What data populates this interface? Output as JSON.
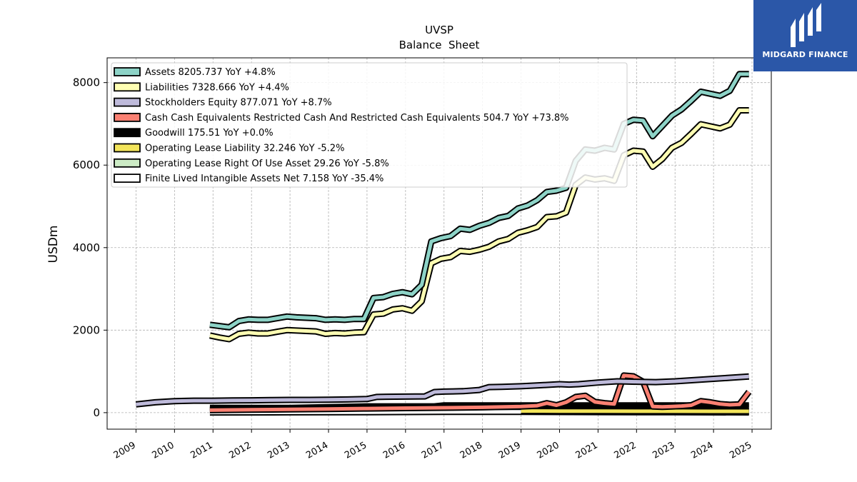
{
  "brand": {
    "name": "MIDGARD FINANCE",
    "bg": "#2b57a8"
  },
  "chart_data": {
    "type": "line",
    "title": "UVSP",
    "subtitle": "Balance  Sheet",
    "ylabel": "USDm",
    "xlabel": "",
    "xlim": [
      2008.25,
      2025.5
    ],
    "ylim": [
      -400,
      8600
    ],
    "yticks": [
      0,
      2000,
      4000,
      6000,
      8000
    ],
    "xticks": [
      "2009",
      "2010",
      "2011",
      "2012",
      "2013",
      "2014",
      "2015",
      "2016",
      "2017",
      "2018",
      "2019",
      "2020",
      "2021",
      "2022",
      "2023",
      "2024",
      "2025"
    ],
    "grid": true,
    "legend_position": "top-left",
    "series": [
      {
        "name": "Assets",
        "legend": "Assets  8205.737 YoY +4.8%",
        "color": "#8dd3c7",
        "x": [
          2010.92,
          2011.17,
          2011.42,
          2011.67,
          2011.92,
          2012.17,
          2012.42,
          2012.67,
          2012.92,
          2013.17,
          2013.42,
          2013.67,
          2013.92,
          2014.17,
          2014.42,
          2014.67,
          2014.92,
          2015.17,
          2015.42,
          2015.67,
          2015.92,
          2016.17,
          2016.42,
          2016.67,
          2016.92,
          2017.17,
          2017.42,
          2017.67,
          2017.92,
          2018.17,
          2018.42,
          2018.67,
          2018.92,
          2019.17,
          2019.42,
          2019.67,
          2019.92,
          2020.17,
          2020.42,
          2020.67,
          2020.92,
          2021.17,
          2021.42,
          2021.67,
          2021.92,
          2022.17,
          2022.42,
          2022.67,
          2022.92,
          2023.17,
          2023.42,
          2023.67,
          2023.92,
          2024.17,
          2024.42,
          2024.67,
          2024.92
        ],
        "y": [
          2130,
          2100,
          2070,
          2220,
          2260,
          2250,
          2250,
          2290,
          2330,
          2310,
          2300,
          2290,
          2250,
          2260,
          2250,
          2270,
          2270,
          2780,
          2800,
          2880,
          2920,
          2870,
          3100,
          4150,
          4230,
          4280,
          4460,
          4430,
          4530,
          4600,
          4720,
          4770,
          4950,
          5020,
          5150,
          5350,
          5380,
          5450,
          6100,
          6380,
          6350,
          6420,
          6380,
          7000,
          7100,
          7080,
          6700,
          6950,
          7200,
          7350,
          7560,
          7780,
          7730,
          7680,
          7800,
          8205.737,
          8205.737
        ]
      },
      {
        "name": "Liabilities",
        "legend": "Liabilities  7328.666 YoY +4.4%",
        "color": "#ffffb3",
        "x": [
          2010.92,
          2011.17,
          2011.42,
          2011.67,
          2011.92,
          2012.17,
          2012.42,
          2012.67,
          2012.92,
          2013.17,
          2013.42,
          2013.67,
          2013.92,
          2014.17,
          2014.42,
          2014.67,
          2014.92,
          2015.17,
          2015.42,
          2015.67,
          2015.92,
          2016.17,
          2016.42,
          2016.67,
          2016.92,
          2017.17,
          2017.42,
          2017.67,
          2017.92,
          2018.17,
          2018.42,
          2018.67,
          2018.92,
          2019.17,
          2019.42,
          2019.67,
          2019.92,
          2020.17,
          2020.42,
          2020.67,
          2020.92,
          2021.17,
          2021.42,
          2021.67,
          2021.92,
          2022.17,
          2022.42,
          2022.67,
          2022.92,
          2023.17,
          2023.42,
          2023.67,
          2023.92,
          2024.17,
          2024.42,
          2024.67,
          2024.92
        ],
        "y": [
          1870,
          1820,
          1780,
          1910,
          1940,
          1920,
          1920,
          1960,
          2000,
          1990,
          1980,
          1970,
          1910,
          1930,
          1920,
          1940,
          1950,
          2380,
          2400,
          2500,
          2530,
          2470,
          2700,
          3620,
          3730,
          3770,
          3920,
          3900,
          3950,
          4020,
          4150,
          4210,
          4360,
          4420,
          4500,
          4740,
          4760,
          4850,
          5520,
          5700,
          5650,
          5680,
          5620,
          6240,
          6350,
          6330,
          5960,
          6150,
          6420,
          6540,
          6760,
          6990,
          6940,
          6890,
          6980,
          7328.666,
          7328.666
        ]
      },
      {
        "name": "Stockholders Equity",
        "legend": "Stockholders Equity  877.071 YoY +8.7%",
        "color": "#bebada",
        "x": [
          2009.0,
          2009.5,
          2010.0,
          2010.5,
          2011.0,
          2011.5,
          2012.0,
          2012.5,
          2013.0,
          2013.5,
          2014.0,
          2014.5,
          2015.0,
          2015.25,
          2015.5,
          2016.0,
          2016.5,
          2016.75,
          2017.0,
          2017.5,
          2017.92,
          2018.17,
          2018.5,
          2019.0,
          2019.5,
          2020.0,
          2020.25,
          2020.5,
          2021.0,
          2021.5,
          2022.0,
          2022.5,
          2023.0,
          2023.5,
          2024.0,
          2024.5,
          2024.92
        ],
        "y": [
          200,
          250,
          280,
          290,
          290,
          295,
          300,
          305,
          310,
          310,
          315,
          320,
          330,
          380,
          385,
          390,
          395,
          500,
          510,
          520,
          550,
          620,
          625,
          640,
          665,
          690,
          680,
          690,
          730,
          760,
          750,
          740,
          760,
          790,
          820,
          850,
          877.071
        ]
      },
      {
        "name": "Cash Cash Equivalents Restricted Cash And Restricted Cash Equivalents",
        "legend": "Cash Cash Equivalents Restricted Cash And Restricted Cash Equivalents  504.7 YoY +73.8%",
        "color": "#fb8072",
        "x": [
          2010.92,
          2012.0,
          2013.0,
          2014.0,
          2015.0,
          2016.0,
          2017.0,
          2018.0,
          2019.0,
          2019.42,
          2019.67,
          2019.92,
          2020.17,
          2020.42,
          2020.67,
          2020.92,
          2021.17,
          2021.42,
          2021.67,
          2021.92,
          2022.17,
          2022.42,
          2022.67,
          2022.92,
          2023.17,
          2023.42,
          2023.67,
          2023.92,
          2024.17,
          2024.42,
          2024.67,
          2024.92
        ],
        "y": [
          60,
          70,
          80,
          90,
          100,
          110,
          120,
          130,
          150,
          170,
          230,
          180,
          250,
          380,
          410,
          260,
          230,
          210,
          900,
          880,
          750,
          150,
          140,
          150,
          160,
          180,
          280,
          250,
          210,
          190,
          200,
          504.7
        ]
      },
      {
        "name": "Goodwill",
        "legend": "Goodwill  175.51 YoY +0.0%",
        "color": "#000000",
        "x": [
          2010.92,
          2013.0,
          2015.0,
          2016.75,
          2017.0,
          2024.92
        ],
        "y": [
          115,
          115,
          152,
          152,
          175.51,
          175.51
        ]
      },
      {
        "name": "Operating Lease Liability",
        "legend": "Operating Lease Liability  32.246 YoY -5.2%",
        "color": "#f2e45a",
        "x": [
          2019.0,
          2020.0,
          2021.0,
          2022.0,
          2023.0,
          2024.0,
          2024.92
        ],
        "y": [
          40,
          38,
          36,
          35,
          34,
          33,
          32.246
        ]
      },
      {
        "name": "Operating Lease Right Of Use Asset",
        "legend": "Operating Lease Right Of Use Asset  29.26 YoY -5.8%",
        "color": "#ccebc5",
        "x": [
          2019.0,
          2020.0,
          2021.0,
          2022.0,
          2023.0,
          2024.0,
          2024.92
        ],
        "y": [
          37,
          35,
          33,
          32,
          31,
          30,
          29.26
        ]
      },
      {
        "name": "Finite Lived Intangible Assets Net",
        "legend": "Finite Lived Intangible Assets Net  7.158 YoY -35.4%",
        "color": "#ffffff",
        "x": [
          2010.92,
          2013.0,
          2015.0,
          2017.0,
          2019.0,
          2021.0,
          2023.0,
          2024.92
        ],
        "y": [
          5,
          8,
          12,
          20,
          18,
          14,
          10,
          7.158
        ]
      }
    ]
  }
}
